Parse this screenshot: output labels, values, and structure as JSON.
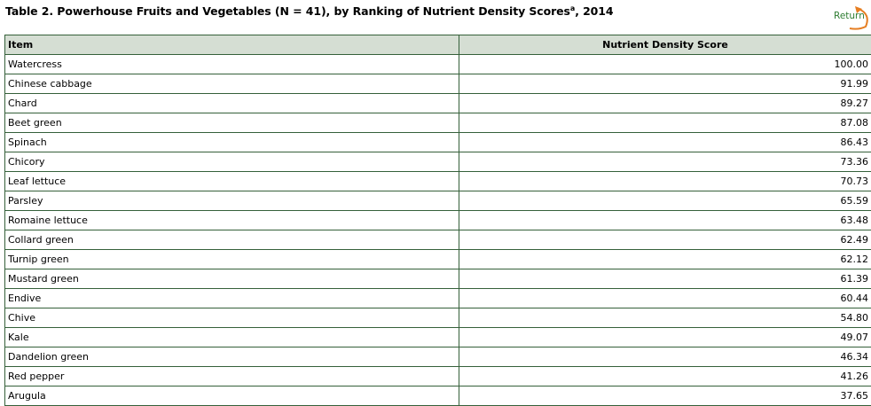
{
  "title": {
    "text": "Table 2. Powerhouse Fruits and Vegetables (N = 41), by Ranking of Nutrient Density Scores",
    "footnote": "a",
    "suffix": ", 2014"
  },
  "return_link": {
    "label": "Return",
    "icon": "return-arrow-icon",
    "color": "#e67e22"
  },
  "table": {
    "headers": [
      "Item",
      "Nutrient Density Score"
    ],
    "rows": [
      {
        "item": "Watercress",
        "score": "100.00"
      },
      {
        "item": "Chinese cabbage",
        "score": "91.99"
      },
      {
        "item": "Chard",
        "score": "89.27"
      },
      {
        "item": "Beet green",
        "score": "87.08"
      },
      {
        "item": "Spinach",
        "score": "86.43"
      },
      {
        "item": "Chicory",
        "score": "73.36"
      },
      {
        "item": "Leaf lettuce",
        "score": "70.73"
      },
      {
        "item": "Parsley",
        "score": "65.59"
      },
      {
        "item": "Romaine lettuce",
        "score": "63.48"
      },
      {
        "item": "Collard green",
        "score": "62.49"
      },
      {
        "item": "Turnip green",
        "score": "62.12"
      },
      {
        "item": "Mustard green",
        "score": "61.39"
      },
      {
        "item": "Endive",
        "score": "60.44"
      },
      {
        "item": "Chive",
        "score": "54.80"
      },
      {
        "item": "Kale",
        "score": "49.07"
      },
      {
        "item": "Dandelion green",
        "score": "46.34"
      },
      {
        "item": "Red pepper",
        "score": "41.26"
      },
      {
        "item": "Arugula",
        "score": "37.65"
      }
    ]
  }
}
